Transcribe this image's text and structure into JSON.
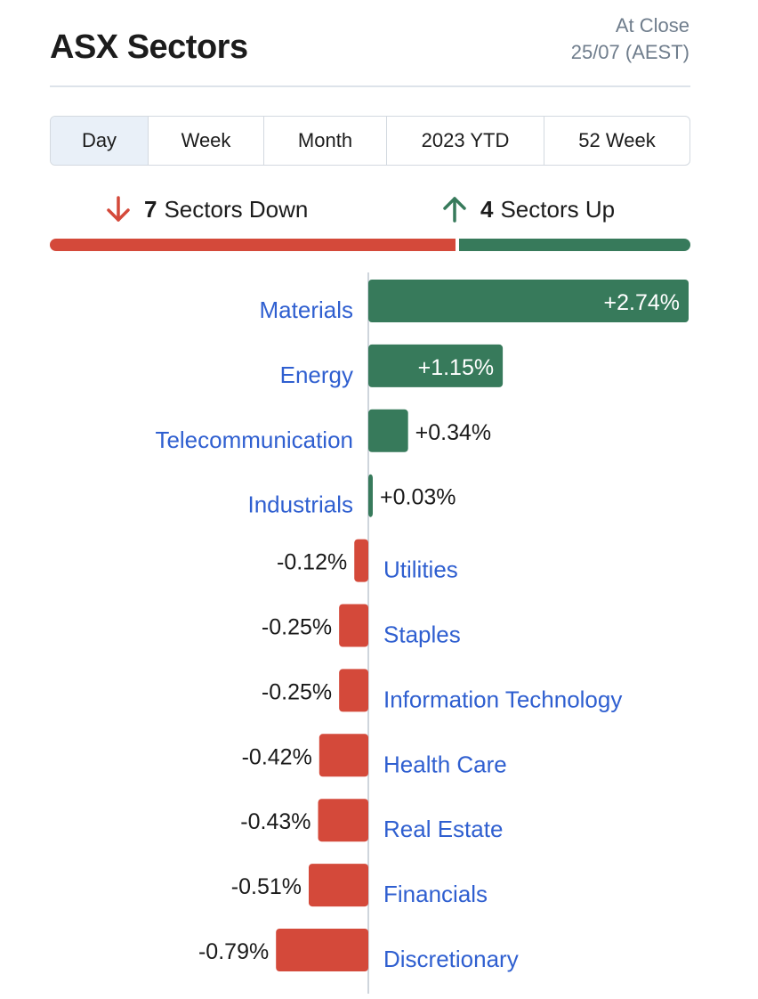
{
  "header": {
    "title": "ASX Sectors",
    "status_line1": "At Close",
    "status_line2": "25/07 (AEST)"
  },
  "tabs": [
    {
      "label": "Day",
      "active": true
    },
    {
      "label": "Week",
      "active": false
    },
    {
      "label": "Month",
      "active": false
    },
    {
      "label": "2023 YTD",
      "active": false
    },
    {
      "label": "52 Week",
      "active": false
    }
  ],
  "summary": {
    "down_count": "7",
    "down_label": "Sectors Down",
    "up_count": "4",
    "up_label": "Sectors Up",
    "down_fraction": 0.636
  },
  "icons": {
    "down": "arrow-down-icon",
    "up": "arrow-up-icon"
  },
  "colors": {
    "positive": "#377a5b",
    "negative": "#d4493a",
    "link": "#2f5fd0",
    "axis": "#cfd5dc"
  },
  "chart_data": {
    "type": "bar",
    "orientation": "horizontal",
    "categories": [
      "Materials",
      "Energy",
      "Telecommunication",
      "Industrials",
      "Utilities",
      "Staples",
      "Information Technology",
      "Health Care",
      "Real Estate",
      "Financials",
      "Discretionary"
    ],
    "values": [
      2.74,
      1.15,
      0.34,
      0.03,
      -0.12,
      -0.25,
      -0.25,
      -0.42,
      -0.43,
      -0.51,
      -0.79
    ],
    "labels": [
      "+2.74%",
      "+1.15%",
      "+0.34%",
      "+0.03%",
      "-0.12%",
      "-0.25%",
      "-0.25%",
      "-0.42%",
      "-0.43%",
      "-0.51%",
      "-0.79%"
    ],
    "unit": "%"
  }
}
